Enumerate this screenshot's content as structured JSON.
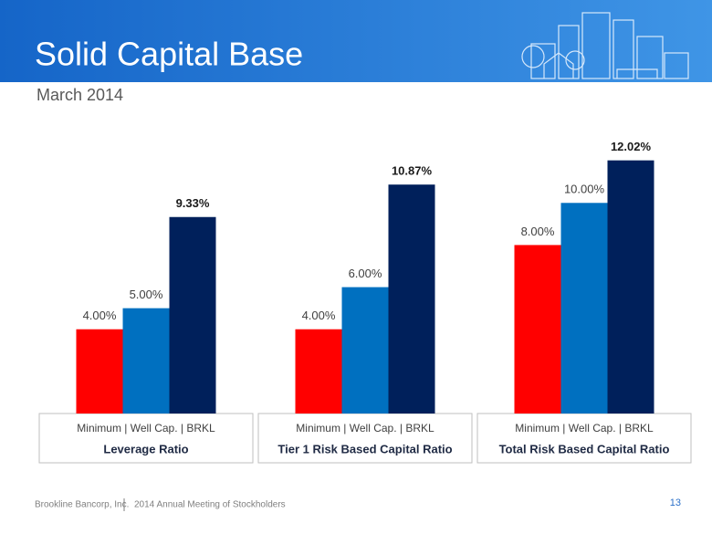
{
  "title": "Solid Capital Base",
  "subtitle": "March 2014",
  "chart_data": {
    "type": "bar",
    "categories": [
      "Leverage Ratio",
      "Tier 1 Risk Based Capital Ratio",
      "Total Risk Based Capital Ratio"
    ],
    "sublabels": [
      "Minimum | Well Cap. | BRKL",
      "Minimum | Well Cap. | BRKL",
      "Minimum | Well Cap. | BRKL"
    ],
    "series": [
      {
        "color": "#ff0000",
        "values": [
          4.0,
          4.0,
          8.0
        ],
        "value_labels": [
          "4.00%",
          "4.00%",
          "8.00%"
        ]
      },
      {
        "color": "#0070c0",
        "values": [
          5.0,
          6.0,
          10.0
        ],
        "value_labels": [
          "5.00%",
          "6.00%",
          "10.00%"
        ]
      },
      {
        "color": "#00205b",
        "values": [
          9.33,
          10.87,
          12.02
        ],
        "value_labels": [
          "9.33%",
          "10.87%",
          "12.02%"
        ]
      }
    ],
    "ylim": [
      0,
      14
    ]
  },
  "footer": {
    "company": "Brookline Bancorp, Inc.",
    "event": "2014 Annual Meeting of Stockholders",
    "page": "13"
  }
}
